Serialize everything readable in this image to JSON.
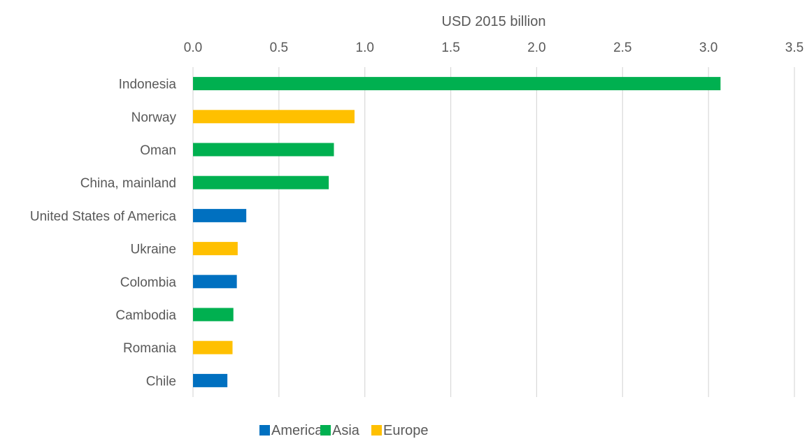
{
  "chart_data": {
    "type": "bar",
    "orientation": "horizontal",
    "xlabel": "USD 2015 billion",
    "xlim": [
      0,
      3.5
    ],
    "x_ticks": [
      "0.0",
      "0.5",
      "1.0",
      "1.5",
      "2.0",
      "2.5",
      "3.0",
      "3.5"
    ],
    "x_axis_position": "top",
    "grid": true,
    "legend_position": "bottom",
    "legend": [
      {
        "name": "Americas",
        "color": "#0070C0"
      },
      {
        "name": "Asia",
        "color": "#00B050"
      },
      {
        "name": "Europe",
        "color": "#FFC000"
      }
    ],
    "categories": [
      "Indonesia",
      "Norway",
      "Oman",
      "China, mainland",
      "United States of America",
      "Ukraine",
      "Colombia",
      "Cambodia",
      "Romania",
      "Chile"
    ],
    "values": [
      3.07,
      0.94,
      0.82,
      0.79,
      0.31,
      0.26,
      0.255,
      0.235,
      0.23,
      0.2
    ],
    "region": [
      "Asia",
      "Europe",
      "Asia",
      "Asia",
      "Americas",
      "Europe",
      "Americas",
      "Asia",
      "Europe",
      "Americas"
    ]
  }
}
